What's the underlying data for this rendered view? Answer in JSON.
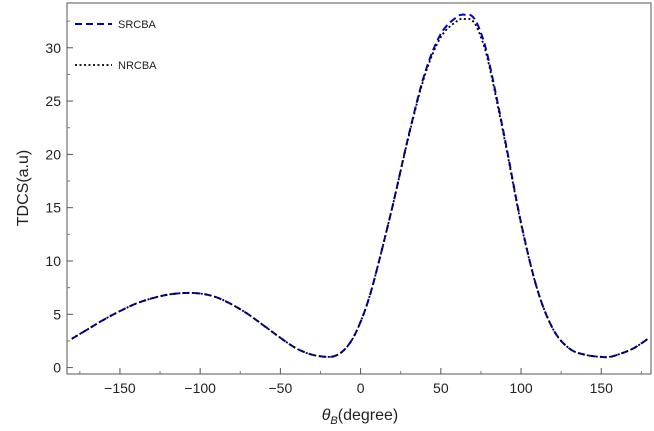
{
  "chart_data": {
    "type": "line",
    "xlabel_symbol": "θ",
    "xlabel_subscript": "B",
    "xlabel_suffix": "(degree)",
    "ylabel": "TDCS(a.u)",
    "xlim": [
      -183,
      181
    ],
    "ylim": [
      -0.6,
      34.2
    ],
    "xticks": [
      -150,
      -100,
      -50,
      0,
      50,
      100,
      150
    ],
    "yticks": [
      0,
      5,
      10,
      15,
      20,
      25,
      30
    ],
    "grid": false,
    "legend_position": "top-left",
    "series": [
      {
        "name": "SRCBA",
        "color": "#0000cc",
        "dash": "dashed",
        "x": [
          -180,
          -170,
          -160,
          -150,
          -140,
          -130,
          -120,
          -110,
          -100,
          -90,
          -80,
          -70,
          -60,
          -50,
          -40,
          -30,
          -20,
          -15,
          -10,
          -5,
          0,
          5,
          10,
          20,
          30,
          40,
          50,
          60,
          65,
          70,
          75,
          80,
          90,
          100,
          110,
          120,
          130,
          140,
          150,
          155,
          160,
          170,
          180
        ],
        "y": [
          2.7,
          3.6,
          4.5,
          5.3,
          6.0,
          6.5,
          6.85,
          7.0,
          6.95,
          6.6,
          5.9,
          5.0,
          3.9,
          2.8,
          1.8,
          1.2,
          1.0,
          1.15,
          1.7,
          2.7,
          4.3,
          6.4,
          9.1,
          15.2,
          21.8,
          27.6,
          31.3,
          32.9,
          33.1,
          32.9,
          31.4,
          28.7,
          21.4,
          13.6,
          7.4,
          3.6,
          1.8,
          1.2,
          1.0,
          1.0,
          1.2,
          1.8,
          2.8
        ]
      },
      {
        "name": "NRCBA",
        "color": "#000000",
        "dash": "dotted",
        "x": [
          -180,
          -170,
          -160,
          -150,
          -140,
          -130,
          -120,
          -110,
          -100,
          -90,
          -80,
          -70,
          -60,
          -50,
          -40,
          -30,
          -20,
          -15,
          -10,
          -5,
          0,
          5,
          10,
          20,
          30,
          40,
          50,
          60,
          65,
          70,
          75,
          80,
          90,
          100,
          110,
          120,
          130,
          140,
          150,
          155,
          160,
          170,
          180
        ],
        "y": [
          2.7,
          3.6,
          4.5,
          5.3,
          6.0,
          6.5,
          6.85,
          7.0,
          6.95,
          6.6,
          5.9,
          5.0,
          3.9,
          2.8,
          1.8,
          1.2,
          1.0,
          1.15,
          1.7,
          2.7,
          4.3,
          6.4,
          9.1,
          15.2,
          21.7,
          27.4,
          31.0,
          32.5,
          32.7,
          32.5,
          31.0,
          28.4,
          21.2,
          13.5,
          7.4,
          3.6,
          1.8,
          1.2,
          1.0,
          1.0,
          1.2,
          1.8,
          2.8
        ]
      }
    ]
  }
}
